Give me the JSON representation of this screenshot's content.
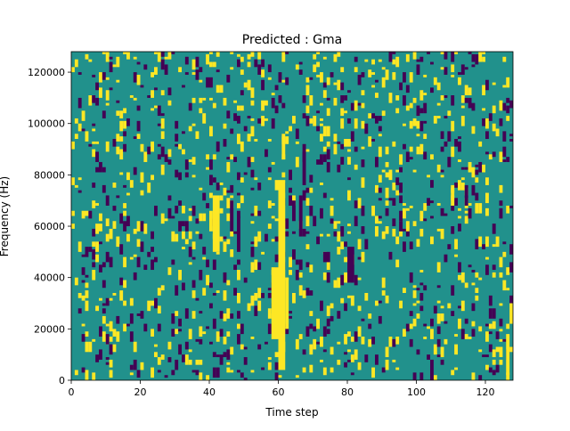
{
  "chart_data": {
    "type": "heatmap",
    "title": "Predicted : Gma",
    "xlabel": "Time step",
    "ylabel": "Frequency (Hz)",
    "xlim": [
      0,
      128
    ],
    "ylim": [
      0,
      128000
    ],
    "x_ticks": [
      0,
      20,
      40,
      60,
      80,
      100,
      120
    ],
    "y_ticks": [
      0,
      20000,
      40000,
      60000,
      80000,
      100000,
      120000
    ],
    "x_tick_labels": [
      "0",
      "20",
      "40",
      "60",
      "80",
      "100",
      "120"
    ],
    "y_tick_labels": [
      "0",
      "20000",
      "40000",
      "60000",
      "80000",
      "100000",
      "120000"
    ],
    "n_time_steps": 128,
    "n_freq_bins": 128,
    "colormap": {
      "low": "#440154",
      "mid": "#21918c",
      "high": "#fde725"
    },
    "background_value": 0,
    "cell_values_legend": {
      "-1": "low (dark purple)",
      "0": "background (teal)",
      "1": "high (yellow)"
    },
    "cells": [
      {
        "t": 60,
        "t_end": 62,
        "f_start": 4000,
        "f_end": 78000,
        "value": 1
      },
      {
        "t": 58,
        "t_end": 60,
        "f_start": 16000,
        "f_end": 44000,
        "value": 1
      },
      {
        "t": 57,
        "t_end": 58,
        "f_start": 24000,
        "f_end": 28000,
        "value": 1
      },
      {
        "t": 62,
        "t_end": 63,
        "f_start": 20000,
        "f_end": 40000,
        "value": 1
      },
      {
        "t": 61,
        "t_end": 62,
        "f_start": 86000,
        "f_end": 96000,
        "value": 1
      },
      {
        "t": 41,
        "t_end": 43,
        "f_start": 50000,
        "f_end": 72000,
        "value": 1
      },
      {
        "t": 40,
        "t_end": 41,
        "f_start": 58000,
        "f_end": 66000,
        "value": 1
      },
      {
        "t": 46,
        "t_end": 47,
        "f_start": 58000,
        "f_end": 70000,
        "value": -1
      },
      {
        "t": 48,
        "t_end": 49,
        "f_start": 50000,
        "f_end": 64000,
        "value": -1
      },
      {
        "t": 64,
        "t_end": 65,
        "f_start": 62000,
        "f_end": 70000,
        "value": -1
      },
      {
        "t": 66,
        "t_end": 67,
        "f_start": 56000,
        "f_end": 72000,
        "value": -1
      },
      {
        "t": 80,
        "t_end": 82,
        "f_start": 38000,
        "f_end": 52000,
        "value": -1
      },
      {
        "t": 67,
        "t_end": 68,
        "f_start": 76000,
        "f_end": 92000,
        "value": -1
      },
      {
        "t": 73,
        "t_end": 75,
        "f_start": 46000,
        "f_end": 50000,
        "value": -1
      },
      {
        "t": 24,
        "t_end": 25,
        "f_start": 28000,
        "f_end": 32000,
        "value": -1
      },
      {
        "t": 95,
        "t_end": 96,
        "f_start": 58000,
        "f_end": 62000,
        "value": -1
      },
      {
        "t": 97,
        "t_end": 98,
        "f_start": 58000,
        "f_end": 62000,
        "value": 1
      },
      {
        "t": 92,
        "t_end": 93,
        "f_start": 124000,
        "f_end": 128000,
        "value": -1
      },
      {
        "t": 94,
        "t_end": 95,
        "f_start": 122000,
        "f_end": 126000,
        "value": 1
      },
      {
        "t": 126,
        "t_end": 127,
        "f_start": 2000,
        "f_end": 18000,
        "value": 1
      },
      {
        "t": 127,
        "t_end": 128,
        "f_start": 22000,
        "f_end": 30000,
        "value": 1
      },
      {
        "t": 127,
        "t_end": 128,
        "f_start": 42000,
        "f_end": 46000,
        "value": -1
      },
      {
        "t": 10,
        "t_end": 11,
        "f_start": 14000,
        "f_end": 18000,
        "value": -1
      },
      {
        "t": 7,
        "t_end": 8,
        "f_start": 50000,
        "f_end": 54000,
        "value": 1
      },
      {
        "t": 104,
        "t_end": 105,
        "f_start": 0,
        "f_end": 8000,
        "value": -1
      },
      {
        "t": 110,
        "t_end": 111,
        "f_start": 68000,
        "f_end": 76000,
        "value": 1
      },
      {
        "t": 114,
        "t_end": 115,
        "f_start": 68000,
        "f_end": 76000,
        "value": -1
      }
    ]
  }
}
